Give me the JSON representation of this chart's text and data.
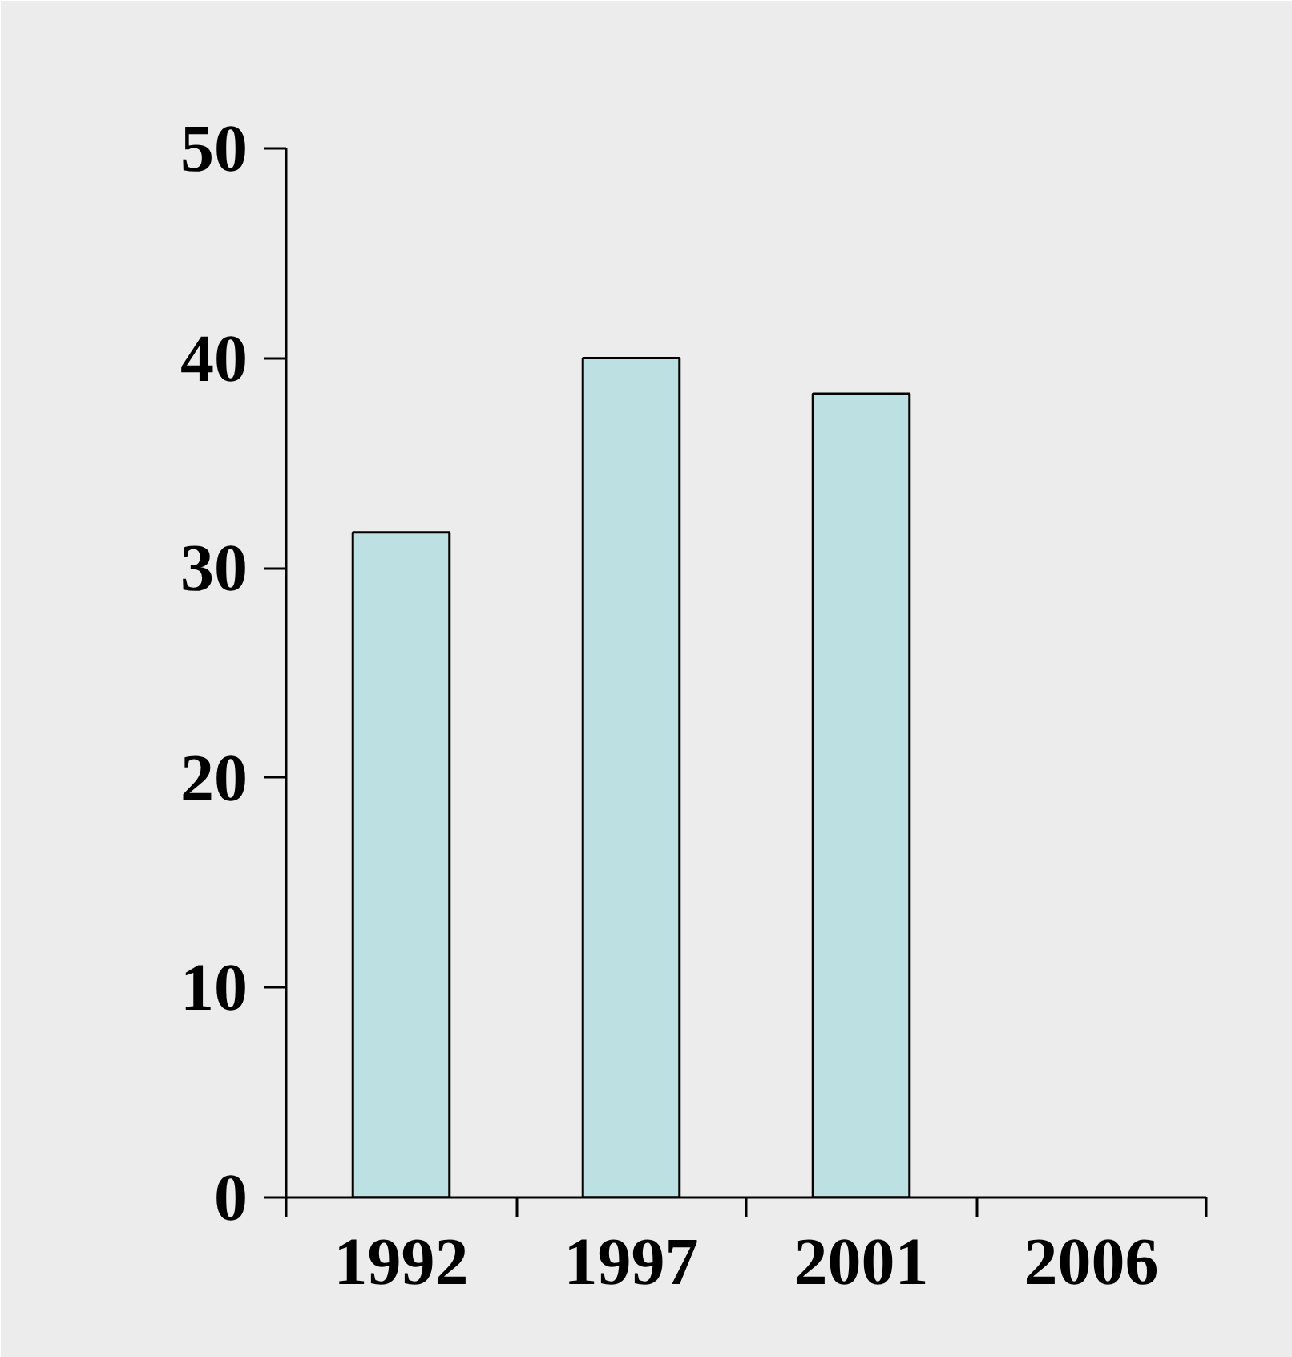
{
  "chart_data": {
    "type": "bar",
    "categories": [
      "1992",
      "1997",
      "2001",
      "2006"
    ],
    "values": [
      31.7,
      40,
      38.3,
      null
    ],
    "color": "#bde0e2",
    "ylim": [
      0,
      50
    ],
    "yticks": [
      0,
      10,
      20,
      30,
      40,
      50
    ],
    "grid": false
  }
}
